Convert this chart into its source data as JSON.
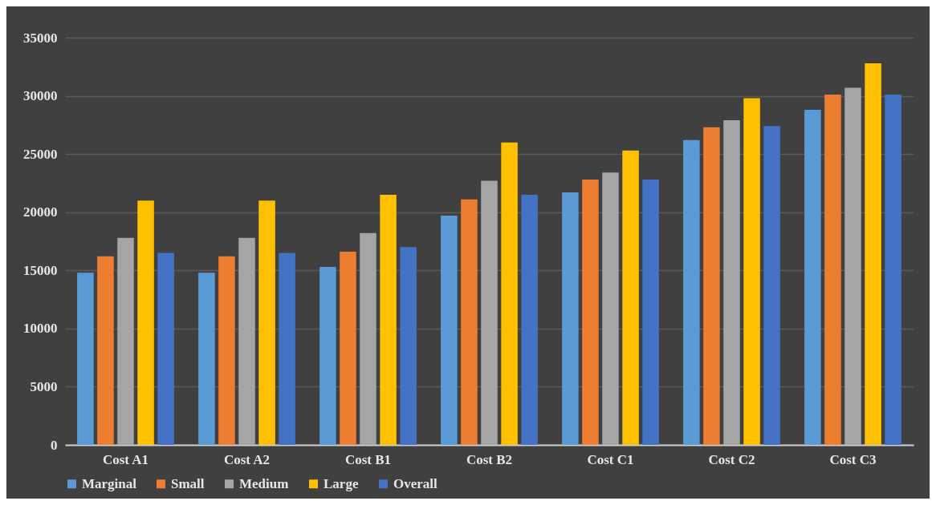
{
  "chart_data": {
    "type": "bar",
    "categories": [
      "Cost A1",
      "Cost A2",
      "Cost B1",
      "Cost B2",
      "Cost C1",
      "Cost C2",
      "Cost C3"
    ],
    "series": [
      {
        "name": "Marginal",
        "color": "#5b9bd5",
        "values": [
          14800,
          14800,
          15300,
          19700,
          21700,
          26200,
          28800
        ]
      },
      {
        "name": "Small",
        "color": "#ed7d31",
        "values": [
          16200,
          16200,
          16600,
          21100,
          22800,
          27300,
          30100
        ]
      },
      {
        "name": "Medium",
        "color": "#a5a5a5",
        "values": [
          17800,
          17800,
          18200,
          22700,
          23400,
          27900,
          30700
        ]
      },
      {
        "name": "Large",
        "color": "#ffc000",
        "values": [
          21000,
          21000,
          21500,
          26000,
          25300,
          29800,
          32800
        ]
      },
      {
        "name": "Overall",
        "color": "#4472c4",
        "values": [
          16500,
          16500,
          17000,
          21500,
          22800,
          27400,
          30100
        ]
      }
    ],
    "ylim": [
      0,
      35000
    ],
    "yticks": [
      0,
      5000,
      10000,
      15000,
      20000,
      25000,
      30000,
      35000
    ],
    "grid": "y",
    "legend": "bottom"
  }
}
